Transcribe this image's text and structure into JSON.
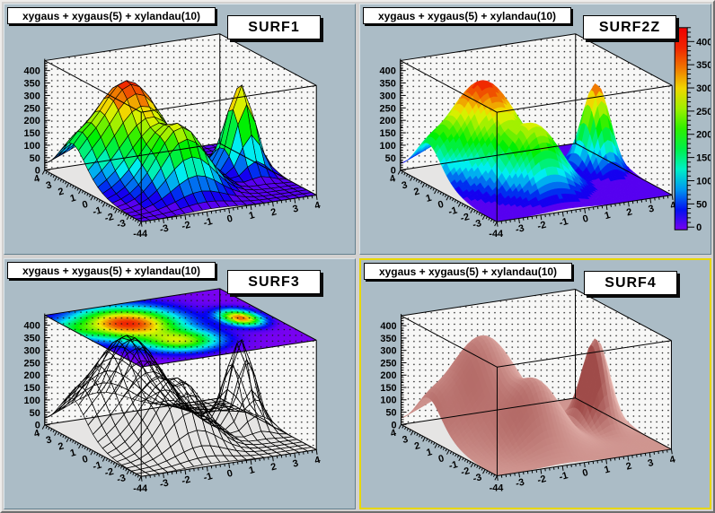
{
  "window": {
    "app": "ROOT canvas",
    "canvas_bg": "#d3d1d0",
    "pad_bg": "#abbcc6",
    "highlight_color": "#e8d800",
    "wall_color": "#f7f7f6",
    "floor_color": "#e6e5e4"
  },
  "pads": [
    {
      "title": "xygaus + xygaus(5) + xylandau(10)",
      "label": "SURF1",
      "style": "mesh",
      "palette": false,
      "contour_top": false,
      "highlighted": false
    },
    {
      "title": "xygaus + xygaus(5) + xylandau(10)",
      "label": "SURF2Z",
      "style": "smooth",
      "palette": true,
      "contour_top": false,
      "highlighted": false
    },
    {
      "title": "xygaus + xygaus(5) + xylandau(10)",
      "label": "SURF3",
      "style": "wire",
      "palette": false,
      "contour_top": true,
      "highlighted": false
    },
    {
      "title": "xygaus + xygaus(5) + xylandau(10)",
      "label": "SURF4",
      "style": "red",
      "palette": false,
      "contour_top": false,
      "highlighted": true
    }
  ],
  "axes": {
    "z_ticks": [
      0,
      50,
      100,
      150,
      200,
      250,
      300,
      350,
      400
    ],
    "x_ticks": [
      -3,
      -2,
      -1,
      0,
      1,
      2,
      3,
      4
    ],
    "y_ticks": [
      4,
      3,
      2,
      1,
      0,
      -1,
      -2,
      -3
    ],
    "corner_label": "-44"
  },
  "palette": {
    "ticks": [
      0,
      50,
      100,
      150,
      200,
      250,
      300,
      350,
      400
    ]
  },
  "chart_data": {
    "type": "surface",
    "function_title": "xygaus + xygaus(5) + xylandau(10)",
    "x_range": [
      -4,
      4
    ],
    "y_range": [
      -4,
      4
    ],
    "z_range": [
      0,
      440
    ],
    "z_tick_step": 50,
    "grid_bins": 20,
    "palette_range": [
      0,
      430
    ],
    "subplots": [
      {
        "label": "SURF1",
        "draw_option": "SURF1",
        "description": "colored surface with black mesh lines"
      },
      {
        "label": "SURF2Z",
        "draw_option": "SURF2Z",
        "description": "smooth colored surface with z color palette bar"
      },
      {
        "label": "SURF3",
        "draw_option": "SURF3",
        "description": "black wireframe surface with color contour plot on box top"
      },
      {
        "label": "SURF4",
        "draw_option": "SURF4",
        "description": "red gouraud-shaded solid surface"
      }
    ],
    "components": [
      {
        "kind": "gaussian-peak",
        "A": 390,
        "cx": -1.6,
        "cy": 1.5,
        "sx": 1.4,
        "sy": 1.5
      },
      {
        "kind": "gaussian-peak",
        "A": 235,
        "cx": -0.8,
        "cy": -1.6,
        "sx": 1.05,
        "sy": 0.95
      },
      {
        "kind": "narrow-spike",
        "A": 355,
        "cx": 2.8,
        "cy": 0.1,
        "sx": 0.5,
        "sy": 0.75
      },
      {
        "kind": "small-edge-bump",
        "A": 80,
        "cx": -3.9,
        "cy": 1.8,
        "sx": 0.6,
        "sy": 0.9
      }
    ]
  }
}
